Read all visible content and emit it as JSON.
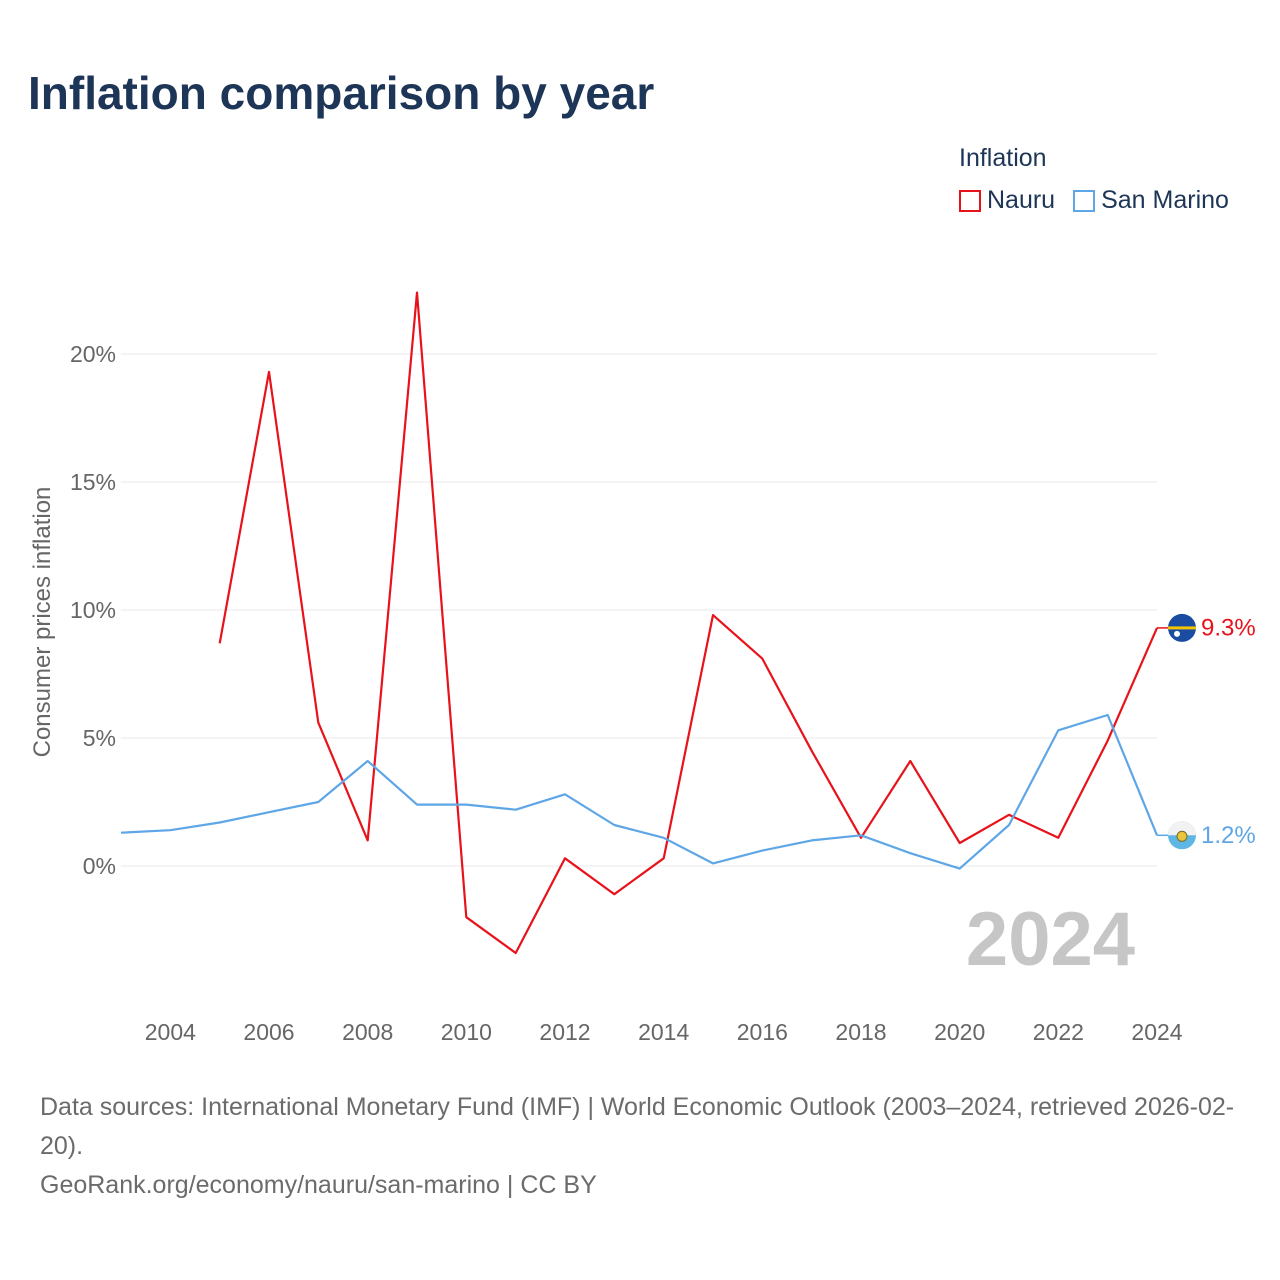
{
  "title": "Inflation comparison by year",
  "legend": {
    "title": "Inflation",
    "items": [
      {
        "label": "Nauru",
        "color": "#e8121b"
      },
      {
        "label": "San Marino",
        "color": "#5fa6e6"
      }
    ]
  },
  "chart_data": {
    "type": "line",
    "title": "Inflation comparison by year",
    "xlabel": "",
    "ylabel": "Consumer prices inflation",
    "xlim": [
      2003,
      2024
    ],
    "ylim": [
      -5,
      24
    ],
    "x_ticks": [
      2004,
      2006,
      2008,
      2010,
      2012,
      2014,
      2016,
      2018,
      2020,
      2022,
      2024
    ],
    "y_ticks": [
      {
        "value": 0,
        "label": "0%"
      },
      {
        "value": 5,
        "label": "5%"
      },
      {
        "value": 10,
        "label": "10%"
      },
      {
        "value": 15,
        "label": "15%"
      },
      {
        "value": 20,
        "label": "20%"
      }
    ],
    "grid": true,
    "legend_position": "top-right",
    "watermark_year": "2024",
    "x": [
      2003,
      2004,
      2005,
      2006,
      2007,
      2008,
      2009,
      2010,
      2011,
      2012,
      2013,
      2014,
      2015,
      2016,
      2017,
      2018,
      2019,
      2020,
      2021,
      2022,
      2023,
      2024
    ],
    "series": [
      {
        "name": "Nauru",
        "color": "#e8121b",
        "icon": "nauru-flag-icon",
        "end_label": "9.3%",
        "values": [
          null,
          null,
          8.7,
          19.3,
          5.6,
          1.0,
          22.4,
          -2.0,
          -3.4,
          0.3,
          -1.1,
          0.3,
          9.8,
          8.1,
          4.5,
          1.1,
          4.1,
          0.9,
          2.0,
          1.1,
          4.9,
          9.3
        ]
      },
      {
        "name": "San Marino",
        "color": "#5fa6e6",
        "icon": "san-marino-flag-icon",
        "end_label": "1.2%",
        "values": [
          1.3,
          1.4,
          1.7,
          2.1,
          2.5,
          4.1,
          2.4,
          2.4,
          2.2,
          2.8,
          1.6,
          1.1,
          0.1,
          0.6,
          1.0,
          1.2,
          0.5,
          -0.1,
          1.6,
          5.3,
          5.9,
          1.2
        ]
      }
    ]
  },
  "footer": {
    "sources": "Data sources: International Monetary Fund (IMF) | World Economic Outlook (2003–2024, retrieved 2026-02-20).",
    "credit": "GeoRank.org/economy/nauru/san-marino | CC BY"
  }
}
